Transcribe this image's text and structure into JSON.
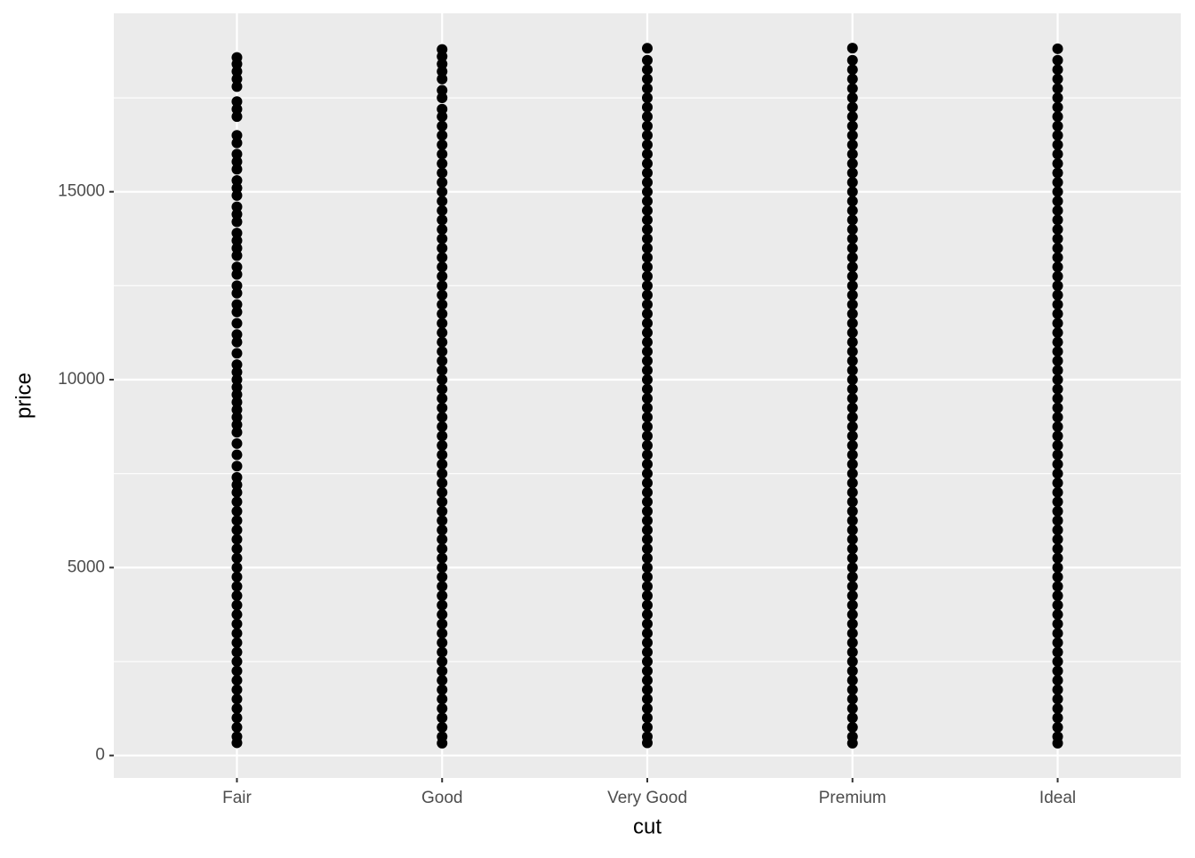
{
  "chart_data": {
    "type": "strip",
    "x_label": "cut",
    "y_label": "price",
    "categories": [
      "Fair",
      "Good",
      "Very Good",
      "Premium",
      "Ideal"
    ],
    "values": [
      [
        337,
        500,
        750,
        1000,
        1250,
        1500,
        1750,
        2000,
        2250,
        2500,
        2750,
        3000,
        3250,
        3500,
        3750,
        4000,
        4250,
        4500,
        4750,
        5000,
        5250,
        5500,
        5750,
        6000,
        6250,
        6500,
        6750,
        7000,
        7200,
        7400,
        7700,
        8000,
        8300,
        8600,
        8800,
        9000,
        9200,
        9400,
        9600,
        9800,
        10000,
        10200,
        10400,
        10700,
        11000,
        11200,
        11500,
        11800,
        12000,
        12300,
        12500,
        12800,
        13000,
        13300,
        13500,
        13700,
        13900,
        14200,
        14400,
        14600,
        14900,
        15100,
        15300,
        15600,
        15800,
        16000,
        16300,
        16500,
        17000,
        17200,
        17400,
        17800,
        18000,
        18200,
        18400,
        18574
      ],
      [
        327,
        500,
        750,
        1000,
        1250,
        1500,
        1750,
        2000,
        2250,
        2500,
        2750,
        3000,
        3250,
        3500,
        3750,
        4000,
        4250,
        4500,
        4750,
        5000,
        5250,
        5500,
        5750,
        6000,
        6250,
        6500,
        6750,
        7000,
        7250,
        7500,
        7750,
        8000,
        8250,
        8500,
        8750,
        9000,
        9250,
        9500,
        9750,
        10000,
        10250,
        10500,
        10750,
        11000,
        11250,
        11500,
        11750,
        12000,
        12250,
        12500,
        12750,
        13000,
        13250,
        13500,
        13750,
        14000,
        14250,
        14500,
        14750,
        15000,
        15250,
        15500,
        15750,
        16000,
        16250,
        16500,
        16750,
        17000,
        17200,
        17500,
        17700,
        18000,
        18200,
        18400,
        18600,
        18788
      ],
      [
        336,
        500,
        750,
        1000,
        1250,
        1500,
        1750,
        2000,
        2250,
        2500,
        2750,
        3000,
        3250,
        3500,
        3750,
        4000,
        4250,
        4500,
        4750,
        5000,
        5250,
        5500,
        5750,
        6000,
        6250,
        6500,
        6750,
        7000,
        7250,
        7500,
        7750,
        8000,
        8250,
        8500,
        8750,
        9000,
        9250,
        9500,
        9750,
        10000,
        10250,
        10500,
        10750,
        11000,
        11250,
        11500,
        11750,
        12000,
        12250,
        12500,
        12750,
        13000,
        13250,
        13500,
        13750,
        14000,
        14250,
        14500,
        14750,
        15000,
        15250,
        15500,
        15750,
        16000,
        16250,
        16500,
        16750,
        17000,
        17250,
        17500,
        17750,
        18000,
        18250,
        18500,
        18818
      ],
      [
        326,
        500,
        750,
        1000,
        1250,
        1500,
        1750,
        2000,
        2250,
        2500,
        2750,
        3000,
        3250,
        3500,
        3750,
        4000,
        4250,
        4500,
        4750,
        5000,
        5250,
        5500,
        5750,
        6000,
        6250,
        6500,
        6750,
        7000,
        7250,
        7500,
        7750,
        8000,
        8250,
        8500,
        8750,
        9000,
        9250,
        9500,
        9750,
        10000,
        10250,
        10500,
        10750,
        11000,
        11250,
        11500,
        11750,
        12000,
        12250,
        12500,
        12750,
        13000,
        13250,
        13500,
        13750,
        14000,
        14250,
        14500,
        14750,
        15000,
        15250,
        15500,
        15750,
        16000,
        16250,
        16500,
        16750,
        17000,
        17250,
        17500,
        17750,
        18000,
        18250,
        18500,
        18823
      ],
      [
        326,
        500,
        750,
        1000,
        1250,
        1500,
        1750,
        2000,
        2250,
        2500,
        2750,
        3000,
        3250,
        3500,
        3750,
        4000,
        4250,
        4500,
        4750,
        5000,
        5250,
        5500,
        5750,
        6000,
        6250,
        6500,
        6750,
        7000,
        7250,
        7500,
        7750,
        8000,
        8250,
        8500,
        8750,
        9000,
        9250,
        9500,
        9750,
        10000,
        10250,
        10500,
        10750,
        11000,
        11250,
        11500,
        11750,
        12000,
        12250,
        12500,
        12750,
        13000,
        13250,
        13500,
        13750,
        14000,
        14250,
        14500,
        14750,
        15000,
        15250,
        15500,
        15750,
        16000,
        16250,
        16500,
        16750,
        17000,
        17250,
        17500,
        17750,
        18000,
        18250,
        18500,
        18806
      ]
    ],
    "color": "#000000",
    "ylim": [
      -599,
      19748
    ],
    "yticks": [
      0,
      5000,
      10000,
      15000
    ],
    "minor_yticks": [
      2500,
      7500,
      12500,
      17500
    ],
    "grid": true
  }
}
